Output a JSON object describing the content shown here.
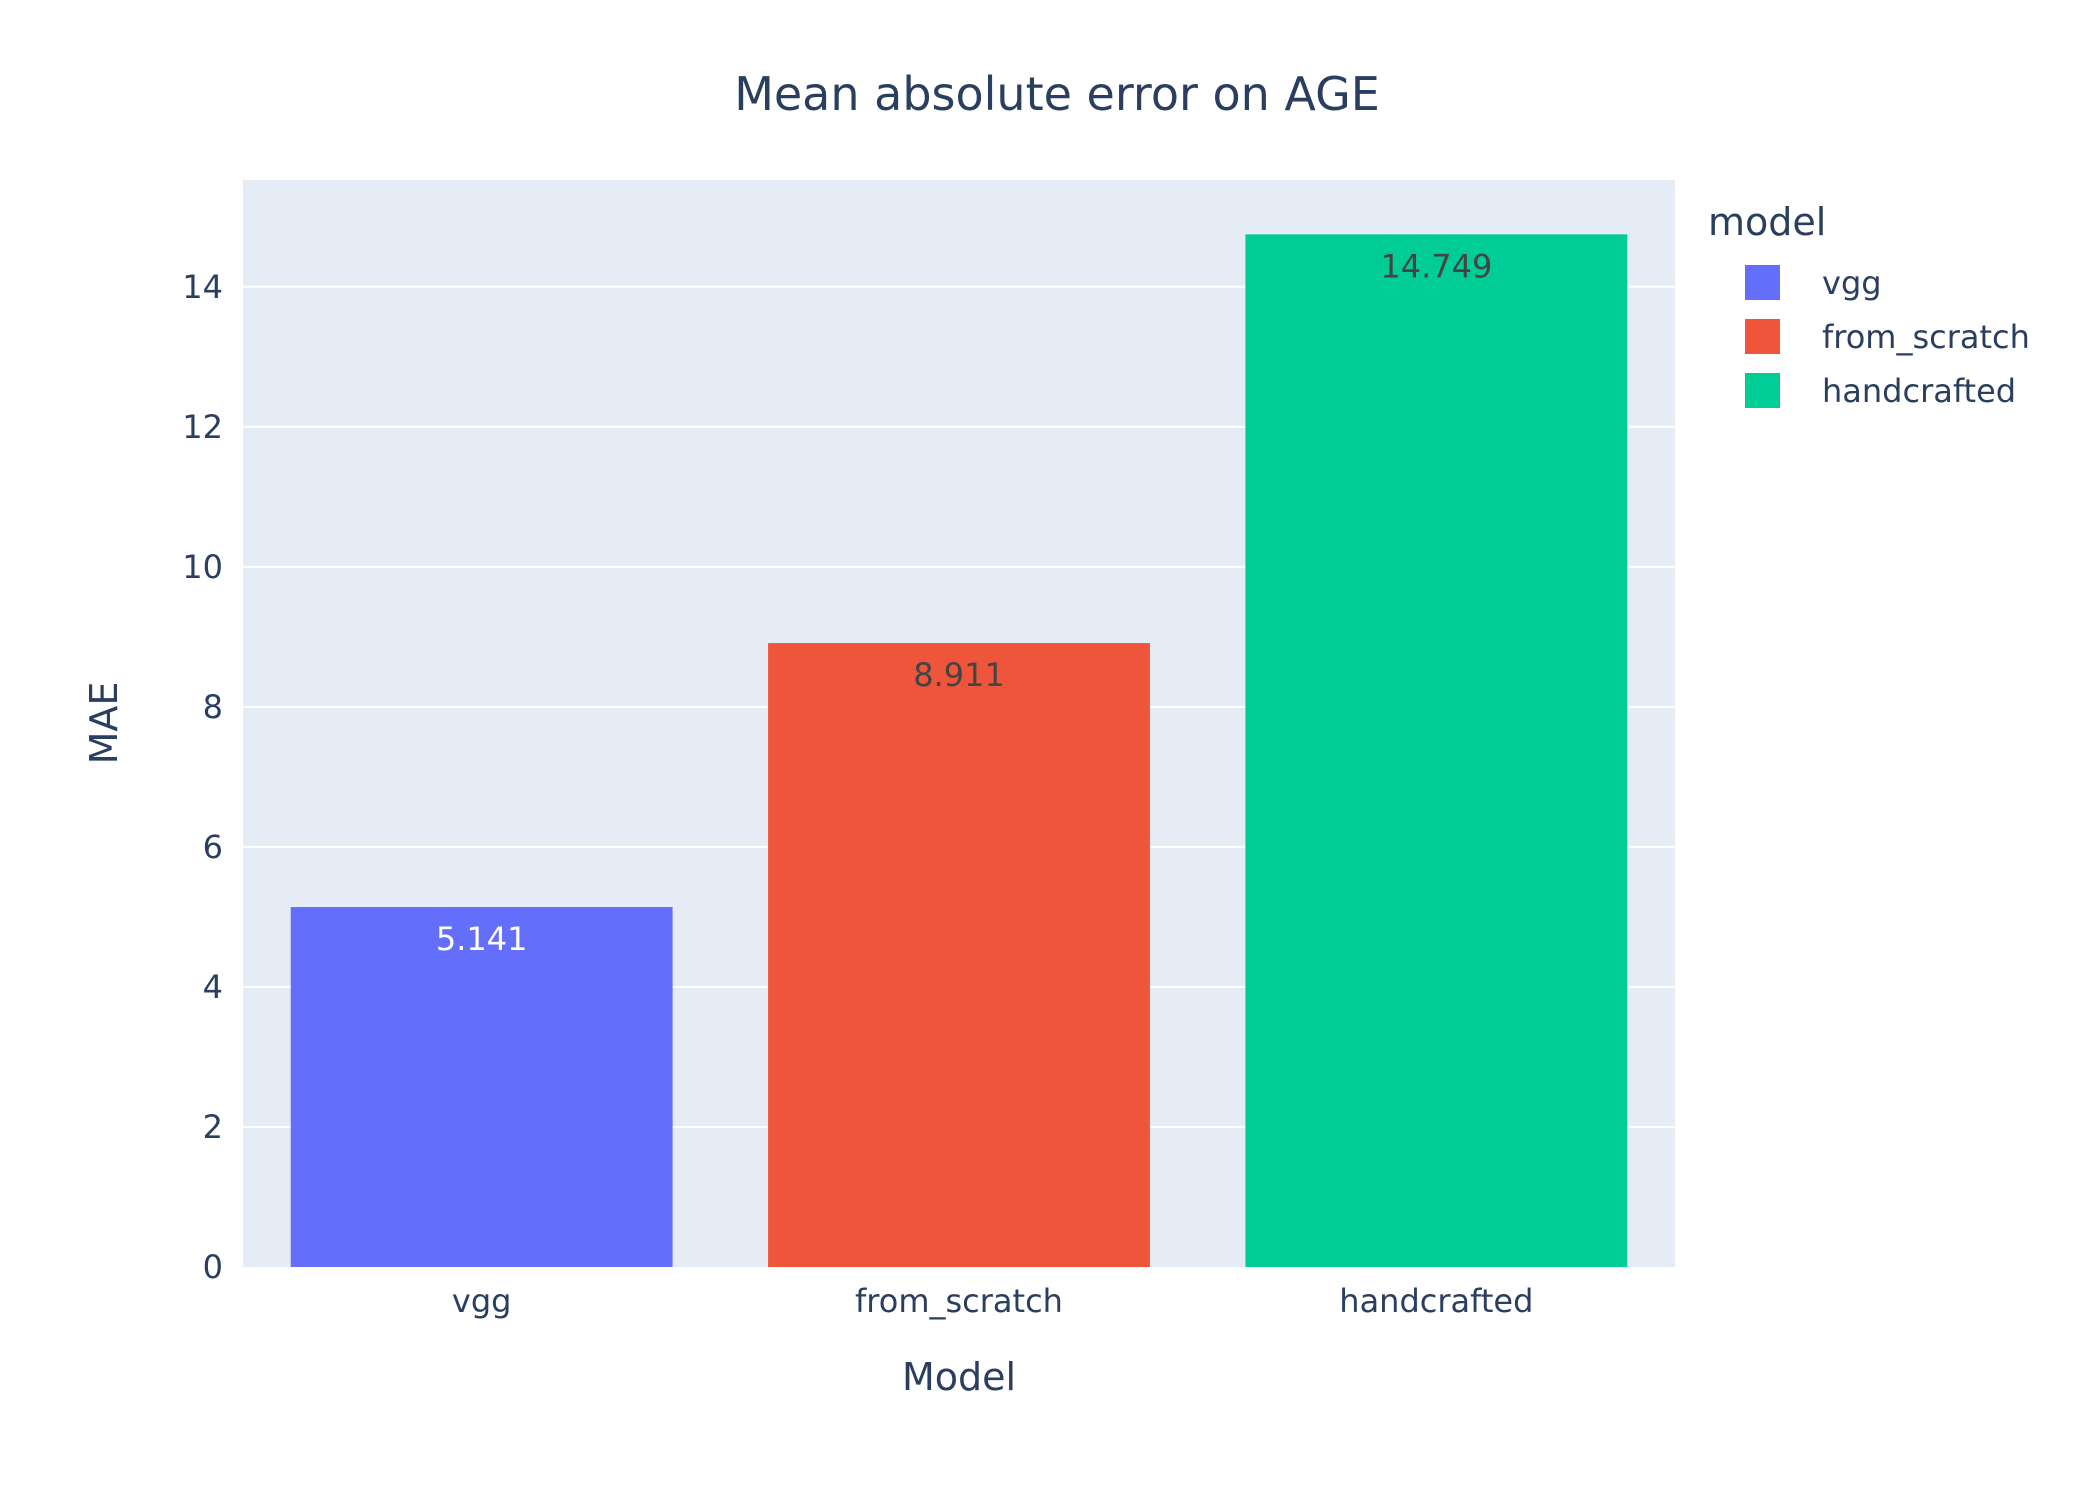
{
  "chart_data": {
    "type": "bar",
    "title": "Mean absolute error on AGE",
    "xlabel": "Model",
    "ylabel": "MAE",
    "categories": [
      "vgg",
      "from_scratch",
      "handcrafted"
    ],
    "values": [
      5.141,
      8.911,
      14.749
    ],
    "data_labels": [
      "5.141",
      "8.911",
      "14.749"
    ],
    "colors": [
      "#636efa",
      "#ef553b",
      "#00cc96"
    ],
    "label_colors": [
      "#ffffff",
      "#444444",
      "#444444"
    ],
    "ylim": [
      0,
      15.525
    ],
    "yticks": [
      0,
      2,
      4,
      6,
      8,
      10,
      12,
      14
    ],
    "ytick_labels": [
      "0",
      "2",
      "4",
      "6",
      "8",
      "10",
      "12",
      "14"
    ],
    "grid": true,
    "plot_bg": "#e5ecf6",
    "legend": {
      "title": "model",
      "placement": "top-right",
      "entries": [
        "vgg",
        "from_scratch",
        "handcrafted"
      ]
    }
  }
}
